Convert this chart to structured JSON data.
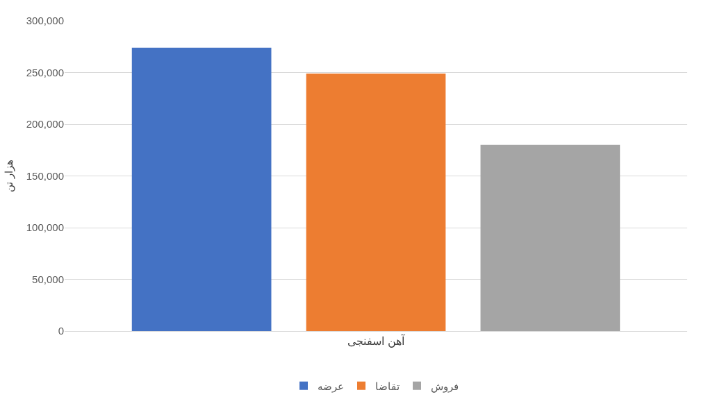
{
  "chart_data": {
    "type": "bar",
    "categories": [
      "آهن اسفنجی"
    ],
    "ylabel": "هزار تن",
    "series": [
      {
        "name": "عرضه",
        "color": "#4472c4",
        "values": [
          274000
        ]
      },
      {
        "name": "تقاضا",
        "color": "#ed7d31",
        "values": [
          249000
        ]
      },
      {
        "name": "فروش",
        "color": "#a5a5a5",
        "values": [
          180000
        ]
      }
    ],
    "ylim": [
      0,
      300000
    ],
    "yticks": [
      0,
      {
        "value": 50000,
        "label": "50,000"
      },
      {
        "value": 100000,
        "label": "100,000"
      },
      {
        "value": 150000,
        "label": "150,000"
      },
      {
        "value": 200000,
        "label": "200,000"
      },
      {
        "value": 250000,
        "label": "250,000"
      },
      {
        "value": 300000,
        "label": "300,000"
      }
    ],
    "grid": "y",
    "legend": "bottom"
  }
}
